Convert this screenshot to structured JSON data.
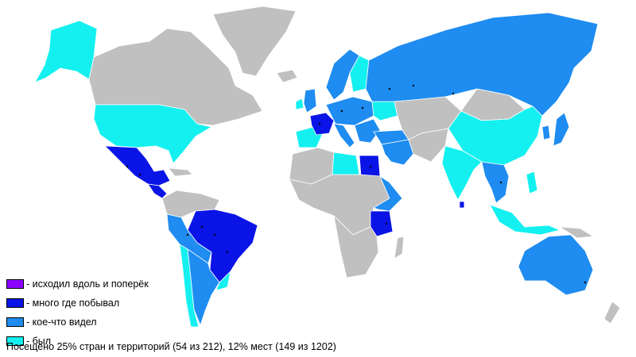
{
  "colors": {
    "ocean": "#ffffff",
    "not_visited": "#c0c0c0",
    "walked_across": "#8a00ff",
    "visited_a_lot": "#0a14e6",
    "seen_something": "#1e8cf0",
    "been": "#14f0f0",
    "city_dot": "#000000"
  },
  "legend": [
    {
      "label": "- исходил вдоль и поперёк",
      "color": "#8a00ff"
    },
    {
      "label": "- много где побывал",
      "color": "#0a14e6"
    },
    {
      "label": "- кое-что видел",
      "color": "#1e8cf0"
    },
    {
      "label": "- был",
      "color": "#14f0f0"
    }
  ],
  "summary": "Посещено 25% стран и территорий (54 из 212), 12% мест (149 из 1202)",
  "regions": {
    "north_america": {
      "alaska": "been",
      "canada": "not_visited",
      "greenland": "not_visited",
      "usa": "been",
      "mexico": "visited_a_lot",
      "central_america": "visited_a_lot",
      "caribbean": "not_visited"
    },
    "south_america": {
      "colombia_venezuela": "not_visited",
      "brazil": "visited_a_lot",
      "peru_bolivia": "seen_something",
      "chile": "been",
      "argentina": "seen_something",
      "uruguay": "been"
    },
    "europe": {
      "iceland": "not_visited",
      "scandinavia": "seen_something",
      "finland": "been",
      "uk": "seen_something",
      "ireland": "been",
      "iberia": "been",
      "france": "visited_a_lot",
      "central_europe": "seen_something",
      "italy": "seen_something",
      "balkans_greece": "seen_something",
      "ukraine": "been",
      "turkey": "seen_something"
    },
    "asia": {
      "russia": "seen_something",
      "kazakhstan_central": "not_visited",
      "middle_east": "seen_something",
      "iran": "not_visited",
      "india": "been",
      "china": "been",
      "mongolia": "not_visited",
      "japan": "seen_something",
      "korea": "seen_something",
      "indochina": "seen_something",
      "indonesia": "been",
      "philippines": "been",
      "sri_lanka": "visited_a_lot"
    },
    "africa": {
      "north_africa": "not_visited",
      "libya": "been",
      "egypt": "visited_a_lot",
      "west_central_africa": "not_visited",
      "east_africa": "seen_something",
      "tanzania": "visited_a_lot",
      "southern_africa": "not_visited",
      "madagascar": "not_visited"
    },
    "oceania": {
      "australia": "seen_something",
      "new_zealand": "not_visited",
      "papua": "not_visited"
    }
  }
}
